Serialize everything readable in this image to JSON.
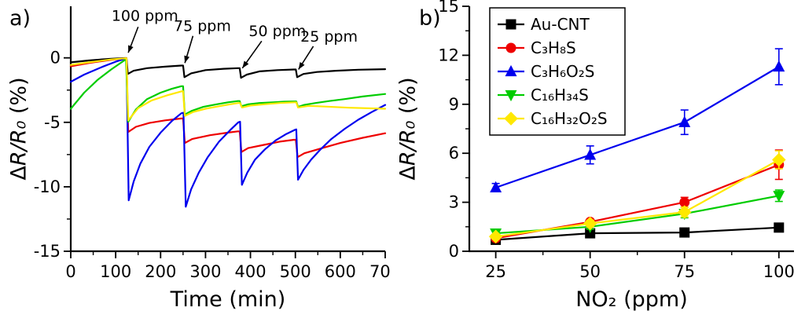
{
  "figure_background": "#ffffff",
  "chart_data": [
    {
      "type": "line",
      "panel_label": "a)",
      "xlabel": "Time (min)",
      "ylabel": "ΔR/R₀ (%)",
      "ylabel_parts": {
        "delta": "Δ",
        "ratio": "R/R₀",
        "unit": " (%)"
      },
      "x_range": [
        0,
        700
      ],
      "y_range": [
        -15,
        4
      ],
      "x_ticks": [
        0,
        100,
        200,
        300,
        400,
        500,
        600,
        700
      ],
      "y_ticks": [
        0,
        -5,
        -10,
        -15
      ],
      "x_minor": [
        50,
        150,
        250,
        350,
        450,
        550,
        650
      ],
      "y_minor": [
        -2.5,
        -7.5,
        -12.5
      ],
      "grid": false,
      "annotations": [
        {
          "text": "100 ppm",
          "tx": 165,
          "ty": 3.3,
          "x1": 150,
          "y1": 2.4,
          "x2": 128,
          "y2": 0.4
        },
        {
          "text": "75 ppm",
          "tx": 293,
          "ty": 2.5,
          "x1": 272,
          "y1": 1.7,
          "x2": 254,
          "y2": -0.4
        },
        {
          "text": "50 ppm",
          "tx": 460,
          "ty": 2.1,
          "x1": 425,
          "y1": 1.3,
          "x2": 382,
          "y2": -0.8
        },
        {
          "text": "25 ppm",
          "tx": 575,
          "ty": 1.7,
          "x1": 540,
          "y1": 0.9,
          "x2": 507,
          "y2": -0.9
        }
      ],
      "series": [
        {
          "name": "Au-CNT",
          "color": "#000000",
          "points": [
            [
              0,
              -0.35
            ],
            [
              40,
              -0.2
            ],
            [
              90,
              -0.07
            ],
            [
              120,
              -0.02
            ],
            [
              124,
              -0.02
            ],
            [
              127,
              -1.25
            ],
            [
              140,
              -1.0
            ],
            [
              170,
              -0.8
            ],
            [
              210,
              -0.68
            ],
            [
              246,
              -0.6
            ],
            [
              250,
              -0.6
            ],
            [
              253,
              -1.5
            ],
            [
              268,
              -1.2
            ],
            [
              300,
              -0.95
            ],
            [
              340,
              -0.85
            ],
            [
              372,
              -0.8
            ],
            [
              376,
              -0.8
            ],
            [
              379,
              -1.55
            ],
            [
              392,
              -1.3
            ],
            [
              420,
              -1.05
            ],
            [
              460,
              -0.95
            ],
            [
              497,
              -0.9
            ],
            [
              501,
              -0.9
            ],
            [
              504,
              -1.5
            ],
            [
              518,
              -1.25
            ],
            [
              548,
              -1.1
            ],
            [
              590,
              -1.0
            ],
            [
              640,
              -0.92
            ],
            [
              700,
              -0.88
            ]
          ]
        },
        {
          "name": "C₃H₈S",
          "color": "#ee0000",
          "points": [
            [
              0,
              -0.65
            ],
            [
              40,
              -0.4
            ],
            [
              90,
              -0.15
            ],
            [
              120,
              -0.04
            ],
            [
              124,
              -0.03
            ],
            [
              128,
              -5.75
            ],
            [
              145,
              -5.35
            ],
            [
              175,
              -5.05
            ],
            [
              210,
              -4.85
            ],
            [
              246,
              -4.7
            ],
            [
              250,
              -4.7
            ],
            [
              254,
              -6.6
            ],
            [
              270,
              -6.3
            ],
            [
              310,
              -6.0
            ],
            [
              350,
              -5.8
            ],
            [
              372,
              -5.7
            ],
            [
              376,
              -5.7
            ],
            [
              380,
              -7.3
            ],
            [
              395,
              -7.0
            ],
            [
              430,
              -6.75
            ],
            [
              465,
              -6.5
            ],
            [
              497,
              -6.35
            ],
            [
              501,
              -6.35
            ],
            [
              505,
              -7.7
            ],
            [
              520,
              -7.4
            ],
            [
              560,
              -7.0
            ],
            [
              600,
              -6.6
            ],
            [
              650,
              -6.2
            ],
            [
              700,
              -5.85
            ]
          ]
        },
        {
          "name": "C₃H₆O₂S",
          "color": "#0000ee",
          "points": [
            [
              0,
              -1.85
            ],
            [
              30,
              -1.3
            ],
            [
              70,
              -0.7
            ],
            [
              100,
              -0.3
            ],
            [
              118,
              -0.1
            ],
            [
              124,
              -0.05
            ],
            [
              129,
              -11.05
            ],
            [
              140,
              -9.6
            ],
            [
              155,
              -8.2
            ],
            [
              175,
              -6.9
            ],
            [
              200,
              -5.8
            ],
            [
              225,
              -4.9
            ],
            [
              246,
              -4.3
            ],
            [
              251,
              -4.25
            ],
            [
              256,
              -11.55
            ],
            [
              268,
              -10.2
            ],
            [
              285,
              -8.9
            ],
            [
              305,
              -7.7
            ],
            [
              330,
              -6.5
            ],
            [
              355,
              -5.6
            ],
            [
              373,
              -5.0
            ],
            [
              377,
              -4.95
            ],
            [
              381,
              -9.85
            ],
            [
              393,
              -8.9
            ],
            [
              410,
              -7.9
            ],
            [
              432,
              -7.1
            ],
            [
              456,
              -6.4
            ],
            [
              480,
              -5.9
            ],
            [
              498,
              -5.6
            ],
            [
              502,
              -5.55
            ],
            [
              506,
              -9.45
            ],
            [
              518,
              -8.7
            ],
            [
              535,
              -7.9
            ],
            [
              556,
              -7.1
            ],
            [
              580,
              -6.3
            ],
            [
              610,
              -5.5
            ],
            [
              640,
              -4.8
            ],
            [
              670,
              -4.2
            ],
            [
              700,
              -3.65
            ]
          ]
        },
        {
          "name": "C₁₆H₃₄S",
          "color": "#00cc00",
          "points": [
            [
              0,
              -3.95
            ],
            [
              30,
              -2.7
            ],
            [
              60,
              -1.7
            ],
            [
              90,
              -0.9
            ],
            [
              115,
              -0.3
            ],
            [
              123,
              -0.1
            ],
            [
              128,
              -4.95
            ],
            [
              145,
              -4.0
            ],
            [
              170,
              -3.2
            ],
            [
              200,
              -2.7
            ],
            [
              225,
              -2.4
            ],
            [
              246,
              -2.2
            ],
            [
              250,
              -2.2
            ],
            [
              254,
              -4.4
            ],
            [
              270,
              -4.1
            ],
            [
              295,
              -3.8
            ],
            [
              325,
              -3.6
            ],
            [
              350,
              -3.45
            ],
            [
              372,
              -3.35
            ],
            [
              376,
              -3.35
            ],
            [
              380,
              -3.75
            ],
            [
              395,
              -3.6
            ],
            [
              420,
              -3.5
            ],
            [
              450,
              -3.45
            ],
            [
              475,
              -3.4
            ],
            [
              498,
              -3.38
            ],
            [
              502,
              -3.38
            ],
            [
              506,
              -3.8
            ],
            [
              520,
              -3.65
            ],
            [
              545,
              -3.5
            ],
            [
              575,
              -3.35
            ],
            [
              610,
              -3.2
            ],
            [
              650,
              -3.0
            ],
            [
              700,
              -2.8
            ]
          ]
        },
        {
          "name": "C₁₆H₃₂O₂S",
          "color": "#ffe800",
          "points": [
            [
              0,
              -0.55
            ],
            [
              40,
              -0.35
            ],
            [
              90,
              -0.12
            ],
            [
              120,
              -0.04
            ],
            [
              124,
              -0.03
            ],
            [
              128,
              -4.85
            ],
            [
              150,
              -3.9
            ],
            [
              180,
              -3.3
            ],
            [
              215,
              -2.9
            ],
            [
              246,
              -2.6
            ],
            [
              250,
              -2.58
            ],
            [
              254,
              -4.5
            ],
            [
              272,
              -4.2
            ],
            [
              300,
              -3.95
            ],
            [
              330,
              -3.75
            ],
            [
              355,
              -3.6
            ],
            [
              373,
              -3.5
            ],
            [
              377,
              -3.5
            ],
            [
              381,
              -3.85
            ],
            [
              400,
              -3.7
            ],
            [
              430,
              -3.6
            ],
            [
              465,
              -3.5
            ],
            [
              498,
              -3.45
            ],
            [
              502,
              -3.45
            ],
            [
              506,
              -3.85
            ],
            [
              530,
              -3.72
            ],
            [
              570,
              -3.78
            ],
            [
              620,
              -3.87
            ],
            [
              700,
              -3.95
            ]
          ]
        }
      ]
    },
    {
      "type": "line",
      "panel_label": "b)",
      "xlabel": "NO₂ (ppm)",
      "ylabel": "ΔR/R₀ (%)",
      "ylabel_parts": {
        "delta": "Δ",
        "ratio": "R/R₀",
        "unit": " (%)"
      },
      "x_range": [
        18,
        104
      ],
      "y_range": [
        0,
        15
      ],
      "x_ticks": [
        25,
        50,
        75,
        100
      ],
      "y_ticks": [
        0,
        3,
        6,
        9,
        12,
        15
      ],
      "x_minor": [
        37.5,
        62.5,
        87.5
      ],
      "y_minor": [
        1.5,
        4.5,
        7.5,
        10.5,
        13.5
      ],
      "grid": false,
      "legend": {
        "position": "top-left"
      },
      "series": [
        {
          "name": "Au-CNT",
          "color": "#000000",
          "marker": "square",
          "x": [
            25,
            50,
            75,
            100
          ],
          "values": [
            0.7,
            1.1,
            1.15,
            1.45
          ],
          "errors": [
            0.1,
            0.12,
            0.12,
            0.2
          ]
        },
        {
          "name": "C₃H₈S",
          "color": "#ee0000",
          "marker": "circle",
          "x": [
            25,
            50,
            75,
            100
          ],
          "values": [
            0.8,
            1.8,
            3.0,
            5.3
          ],
          "errors": [
            0.1,
            0.15,
            0.3,
            0.9
          ]
        },
        {
          "name": "C₃H₆O₂S",
          "color": "#0000ee",
          "marker": "triangle-up",
          "x": [
            25,
            50,
            75,
            100
          ],
          "values": [
            3.9,
            5.9,
            7.9,
            11.3
          ],
          "errors": [
            0.25,
            0.55,
            0.75,
            1.1
          ]
        },
        {
          "name": "C₁₆H₃₄S",
          "color": "#00cc00",
          "marker": "triangle-down",
          "x": [
            25,
            50,
            75,
            100
          ],
          "values": [
            1.1,
            1.5,
            2.3,
            3.4
          ],
          "errors": [
            0.15,
            0.15,
            0.25,
            0.35
          ]
        },
        {
          "name": "C₁₆H₃₂O₂S",
          "color": "#ffe800",
          "marker": "diamond",
          "x": [
            25,
            50,
            75,
            100
          ],
          "values": [
            0.9,
            1.7,
            2.4,
            5.6
          ],
          "errors": [
            0.15,
            0.2,
            0.3,
            0.55
          ]
        }
      ]
    }
  ]
}
